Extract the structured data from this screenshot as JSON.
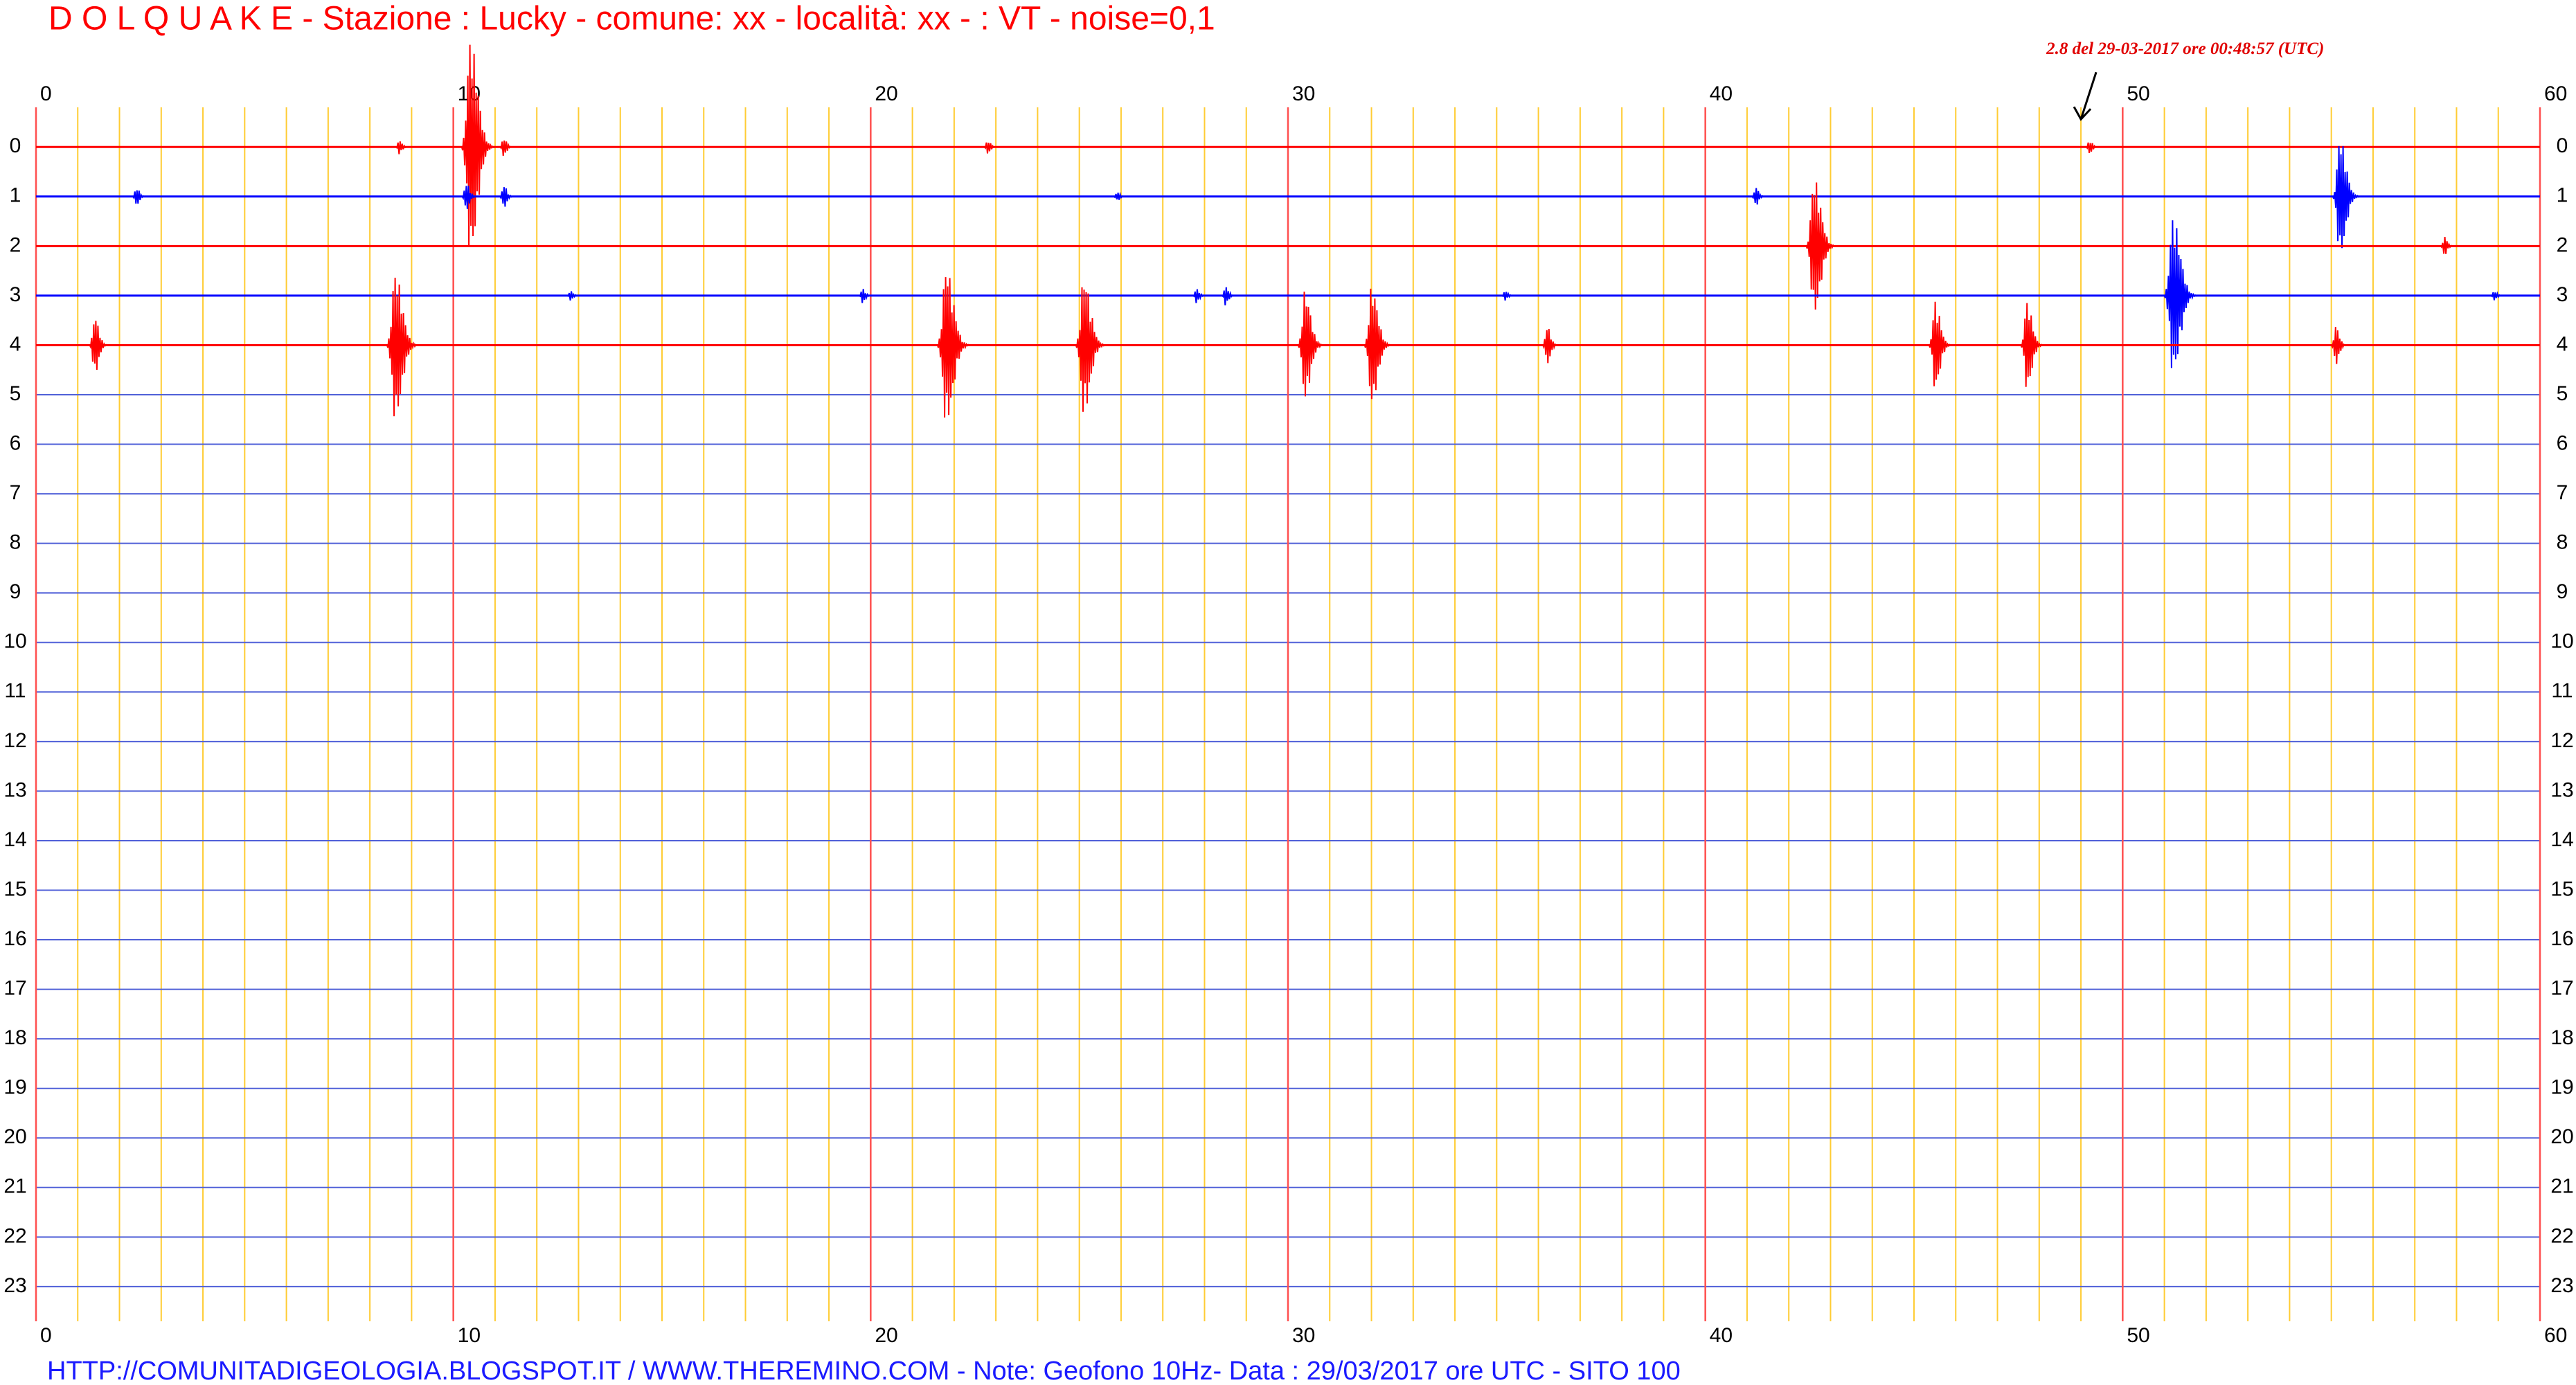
{
  "chart_data": {
    "type": "helicorder",
    "title": "D O L Q U A K E - Stazione : Lucky - comune: xx - località: xx - : VT -  noise=0,1",
    "footer": "HTTP://COMUNITADIGEOLOGIA.BLOGSPOT.IT /  WWW.THEREMINO.COM  -  Note: Geofono 10Hz- Data : 29/03/2017 ore UTC - SITO 100",
    "annotation": {
      "text": "2.8 del 29-03-2017 ore 00:48:57 (UTC)",
      "x": 49.0,
      "row": 0
    },
    "xlim": [
      0,
      60
    ],
    "xticks": [
      0,
      10,
      20,
      30,
      40,
      50,
      60
    ],
    "ylim": [
      -0.8,
      23.7
    ],
    "yticks": [
      0,
      1,
      2,
      3,
      4,
      5,
      6,
      7,
      8,
      9,
      10,
      11,
      12,
      13,
      14,
      15,
      16,
      17,
      18,
      19,
      20,
      21,
      22,
      23
    ],
    "y_inverted": true,
    "grid": true,
    "series": [
      {
        "row": 0,
        "color": "#ff0000",
        "x": [
          8.7,
          10.4,
          11.2,
          22.8,
          49.2
        ],
        "values": [
          0.15,
          2.2,
          0.2,
          0.15,
          0.15
        ]
      },
      {
        "row": 1,
        "color": "#0000ff",
        "x": [
          2.4,
          10.3,
          11.2,
          25.9,
          41.2,
          55.2
        ],
        "values": [
          0.2,
          0.3,
          0.25,
          0.1,
          0.2,
          1.2
        ]
      },
      {
        "row": 2,
        "color": "#ff0000",
        "x": [
          42.6,
          57.7
        ],
        "values": [
          1.4,
          0.2
        ]
      },
      {
        "row": 3,
        "color": "#0000ff",
        "x": [
          12.8,
          19.8,
          27.8,
          28.5,
          35.2,
          51.2,
          58.9
        ],
        "values": [
          0.1,
          0.15,
          0.15,
          0.2,
          0.1,
          1.6,
          0.1
        ]
      },
      {
        "row": 4,
        "color": "#ff0000",
        "x": [
          1.4,
          8.6,
          21.8,
          25.1,
          30.4,
          32.0,
          36.2,
          45.5,
          47.7,
          55.1
        ],
        "values": [
          0.6,
          1.5,
          1.6,
          1.4,
          1.1,
          1.2,
          0.4,
          0.9,
          0.9,
          0.4
        ]
      }
    ]
  }
}
